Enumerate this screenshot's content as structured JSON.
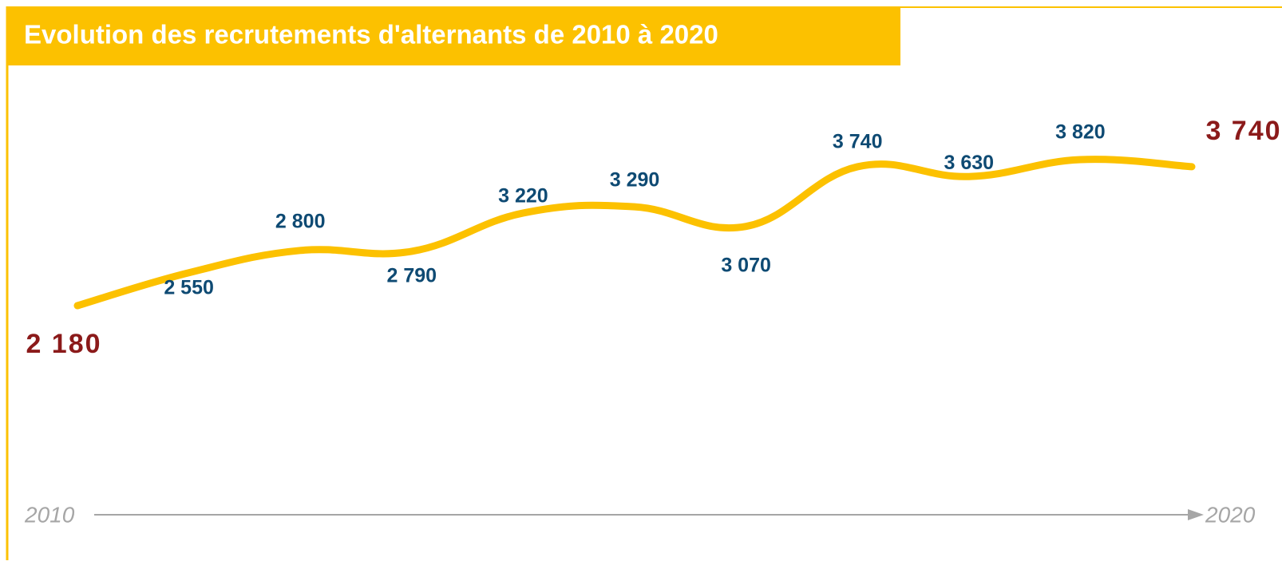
{
  "chart_data": {
    "type": "line",
    "title": "Evolution des recrutements d'alternants de 2010 à 2020",
    "categories": [
      "2010",
      null,
      null,
      null,
      null,
      null,
      null,
      null,
      null,
      null,
      "2020"
    ],
    "values": [
      2180,
      2550,
      2800,
      2790,
      3220,
      3290,
      3070,
      3740,
      3630,
      3820,
      3740
    ],
    "value_labels": [
      "2 180",
      "2 550",
      "2 800",
      "2 790",
      "3 220",
      "3 290",
      "3 070",
      "3 740",
      "3 630",
      "3 820",
      "3 740"
    ],
    "color": "#fcc100"
  }
}
